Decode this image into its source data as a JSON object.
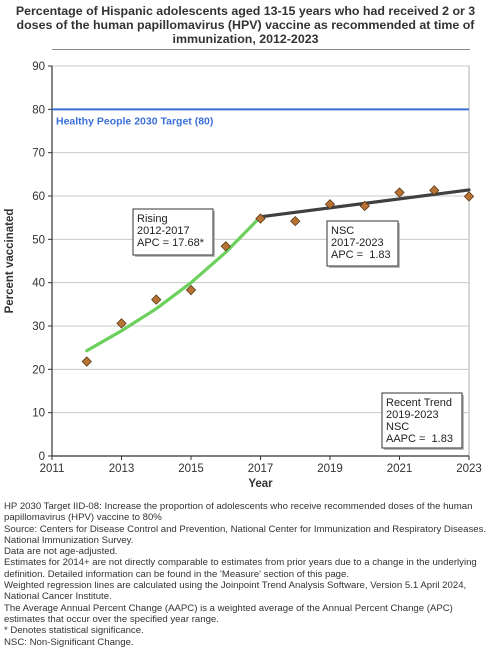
{
  "title": "Percentage of Hispanic adolescents aged 13-15 years who had received 2 or 3 doses of the human papillomavirus (HPV) vaccine as recommended at time of immunization, 2012-2023",
  "chart_data": {
    "type": "scatter",
    "xlabel": "Year",
    "ylabel": "Percent vaccinated",
    "xlim": [
      2011,
      2023
    ],
    "ylim": [
      0,
      90
    ],
    "x_ticks": [
      2011,
      2013,
      2015,
      2017,
      2019,
      2021,
      2023
    ],
    "y_ticks": [
      0,
      10,
      20,
      30,
      40,
      50,
      60,
      70,
      80,
      90
    ],
    "grid": "horizontal",
    "series": [
      {
        "x": [
          2012,
          2013,
          2014,
          2015,
          2016,
          2017,
          2018,
          2019,
          2020,
          2021,
          2022,
          2023
        ],
        "y": [
          21.8,
          30.6,
          36.1,
          38.3,
          48.4,
          54.8,
          54.2,
          58.1,
          57.7,
          60.8,
          61.3,
          59.9
        ],
        "color": "#b87333"
      }
    ],
    "trend_lines": [
      {
        "x": [
          2012,
          2013,
          2014,
          2015,
          2016,
          2017
        ],
        "y": [
          24.3,
          28.9,
          34.0,
          40.0,
          47.0,
          55.2
        ],
        "color": "#6cd05c"
      },
      {
        "x": [
          2017,
          2023
        ],
        "y": [
          55.2,
          61.4
        ],
        "color": "#404040"
      }
    ],
    "target": {
      "value": 80,
      "label": "Healthy People 2030 Target (80)",
      "color": "#3a6fd8"
    },
    "annotations": [
      {
        "lines": [
          "Rising",
          "2012-2017",
          "APC = 17.68*"
        ]
      },
      {
        "lines": [
          "NSC",
          "2017-2023",
          "APC =  1.83"
        ]
      },
      {
        "lines": [
          "Recent Trend",
          "2019-2023",
          "NSC",
          "AAPC =  1.83"
        ]
      }
    ]
  },
  "footnotes": [
    "HP 2030 Target IID-08:  Increase the proportion of adolescents who receive recommended doses of the human papillomavirus (HPV) vaccine to 80%",
    "Source: Centers for Disease Control and Prevention, National Center for Immunization and Respiratory Diseases. National Immunization Survey.",
    "Data are not age-adjusted.",
    "Estimates for 2014+ are not directly comparable to estimates from prior years due to a change in the underlying definition. Detailed information can be found in the 'Measure' section of this page.",
    "Weighted regression lines are calculated using the Joinpoint Trend Analysis Software, Version 5.1 April 2024, National Cancer Institute.",
    "The Average Annual Percent Change (AAPC) is a weighted average of the Annual Percent Change (APC) estimates that occur over the specified year range.",
    "* Denotes statistical significance.",
    "NSC: Non-Significant Change."
  ]
}
